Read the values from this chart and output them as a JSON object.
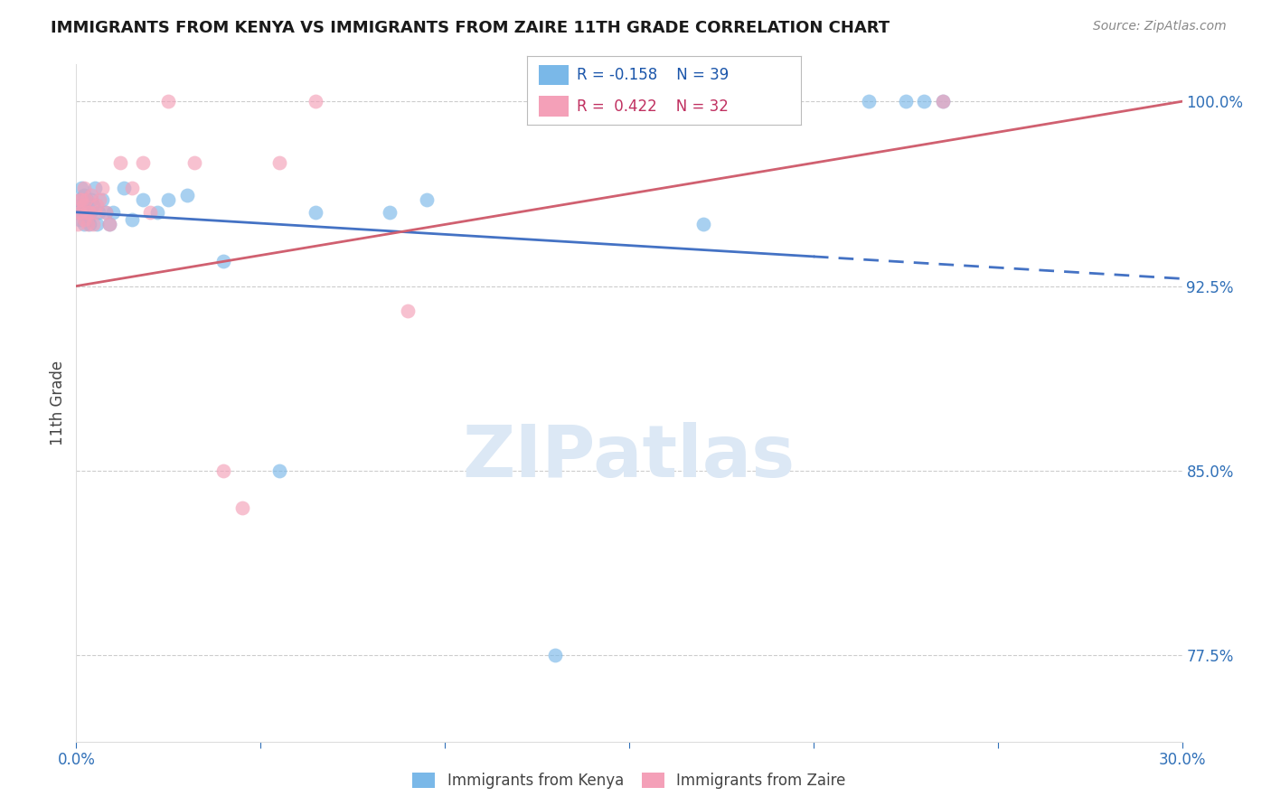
{
  "title": "IMMIGRANTS FROM KENYA VS IMMIGRANTS FROM ZAIRE 11TH GRADE CORRELATION CHART",
  "source": "Source: ZipAtlas.com",
  "ylabel": "11th Grade",
  "xlim": [
    0.0,
    30.0
  ],
  "ylim": [
    74.0,
    101.5
  ],
  "kenya_R": -0.158,
  "kenya_N": 39,
  "zaire_R": 0.422,
  "zaire_N": 32,
  "kenya_color": "#7ab8e8",
  "zaire_color": "#f4a0b8",
  "kenya_line_color": "#4472c4",
  "zaire_line_color": "#d06070",
  "grid_color": "#cccccc",
  "watermark_color": "#dce8f5",
  "kenya_x": [
    0.05,
    0.08,
    0.1,
    0.12,
    0.15,
    0.18,
    0.2,
    0.22,
    0.25,
    0.28,
    0.3,
    0.35,
    0.38,
    0.42,
    0.45,
    0.5,
    0.55,
    0.6,
    0.7,
    0.8,
    0.9,
    1.0,
    1.3,
    1.5,
    1.8,
    2.2,
    2.5,
    3.0,
    4.0,
    5.5,
    6.5,
    8.5,
    9.5,
    13.0,
    17.0,
    21.5,
    22.5,
    23.0,
    23.5
  ],
  "kenya_y": [
    95.5,
    96.0,
    95.2,
    95.8,
    96.5,
    95.5,
    96.2,
    95.0,
    95.5,
    96.0,
    95.2,
    95.0,
    95.5,
    96.0,
    95.8,
    96.5,
    95.0,
    95.5,
    96.0,
    95.5,
    95.0,
    95.5,
    96.5,
    95.2,
    96.0,
    95.5,
    96.0,
    96.2,
    93.5,
    85.0,
    95.5,
    95.5,
    96.0,
    77.5,
    95.0,
    100.0,
    100.0,
    100.0,
    100.0
  ],
  "zaire_x": [
    0.05,
    0.08,
    0.1,
    0.12,
    0.15,
    0.18,
    0.2,
    0.22,
    0.25,
    0.28,
    0.3,
    0.35,
    0.4,
    0.45,
    0.5,
    0.55,
    0.62,
    0.7,
    0.8,
    0.9,
    1.2,
    1.8,
    2.5,
    3.2,
    4.0,
    4.5,
    5.5,
    6.5,
    9.0,
    23.5,
    1.5,
    2.0
  ],
  "zaire_y": [
    95.0,
    95.5,
    96.0,
    95.5,
    96.0,
    95.8,
    96.5,
    95.2,
    96.0,
    95.5,
    95.0,
    95.5,
    96.2,
    95.0,
    95.5,
    95.8,
    96.0,
    96.5,
    95.5,
    95.0,
    97.5,
    97.5,
    100.0,
    97.5,
    85.0,
    83.5,
    97.5,
    100.0,
    91.5,
    100.0,
    96.5,
    95.5
  ],
  "kenya_line_x0": 0.0,
  "kenya_line_y0": 95.5,
  "kenya_line_x1": 30.0,
  "kenya_line_y1": 92.8,
  "kenya_solid_end": 20.0,
  "zaire_line_x0": 0.0,
  "zaire_line_y0": 92.5,
  "zaire_line_x1": 30.0,
  "zaire_line_y1": 100.0,
  "yticks": [
    77.5,
    85.0,
    92.5,
    100.0
  ],
  "xticks": [
    0,
    5,
    10,
    15,
    20,
    25,
    30
  ]
}
